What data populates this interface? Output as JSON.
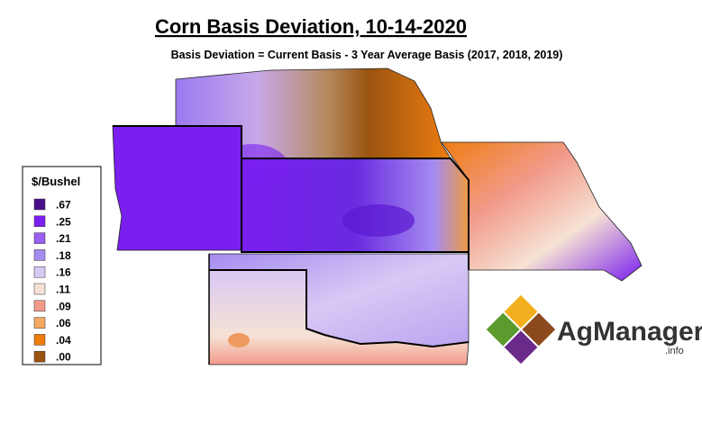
{
  "title": "Corn Basis Deviation, 10-14-2020",
  "subtitle": "Basis Deviation = Current Basis - 3 Year Average Basis (2017, 2018, 2019)",
  "legend": {
    "title": "$/Bushel",
    "items": [
      {
        "label": ".67",
        "color": "#4a0f8c"
      },
      {
        "label": ".25",
        "color": "#7a1ff0"
      },
      {
        "label": ".21",
        "color": "#9a5ef0"
      },
      {
        "label": ".18",
        "color": "#a58cf0"
      },
      {
        "label": ".16",
        "color": "#d8c8f4"
      },
      {
        "label": ".11",
        "color": "#f6e2d4"
      },
      {
        "label": ".09",
        "color": "#f29a8a"
      },
      {
        "label": ".06",
        "color": "#f5a860"
      },
      {
        "label": ".04",
        "color": "#ee7d10"
      },
      {
        "label": ".00",
        "color": "#9a5410"
      }
    ]
  },
  "logo": {
    "name": "AgManager",
    "suffix": ".info"
  }
}
